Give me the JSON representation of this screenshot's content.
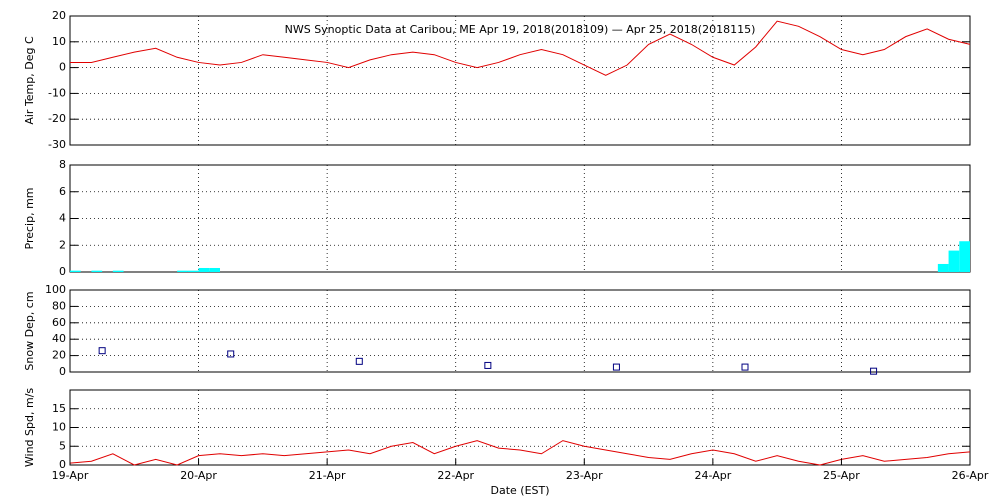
{
  "chart_data": [
    {
      "type": "line",
      "title": "NWS Synoptic Data at Caribou, ME   Apr 19, 2018(2018109) — Apr 25, 2018(2018115)",
      "ylabel": "Air Temp, Deg C",
      "ylim": [
        -30,
        20
      ],
      "yticks": [
        -30,
        -20,
        -10,
        0,
        10,
        20
      ],
      "grid": true,
      "series": [
        {
          "color": "#e00000",
          "values": [
            2,
            2,
            4,
            6,
            7.5,
            4,
            2,
            1,
            2,
            5,
            4,
            3,
            2,
            0,
            3,
            5,
            6,
            5,
            2,
            0,
            2,
            5,
            7,
            5,
            1,
            -3,
            1,
            9,
            13,
            9,
            4,
            1,
            8,
            18,
            16,
            12,
            7,
            5,
            7,
            12,
            15,
            11,
            9
          ]
        }
      ]
    },
    {
      "type": "bar",
      "ylabel": "Precip, mm",
      "ylim": [
        0,
        8
      ],
      "yticks": [
        0,
        2,
        4,
        6,
        8
      ],
      "grid": true,
      "color": "#00ffff",
      "values": [
        0.1,
        0,
        0.1,
        0,
        0.1,
        0,
        0,
        0,
        0,
        0,
        0.1,
        0.1,
        0.3,
        0.3,
        0,
        0,
        0,
        0,
        0,
        0,
        0,
        0,
        0,
        0,
        0,
        0,
        0,
        0,
        0,
        0,
        0,
        0,
        0,
        0,
        0,
        0,
        0,
        0,
        0,
        0,
        0,
        0,
        0,
        0,
        0,
        0,
        0,
        0,
        0,
        0,
        0,
        0,
        0,
        0,
        0,
        0,
        0,
        0,
        0,
        0,
        0,
        0,
        0,
        0,
        0,
        0,
        0,
        0,
        0,
        0,
        0,
        0,
        0,
        0,
        0,
        0,
        0,
        0,
        0,
        0,
        0,
        0.6,
        1.6,
        2.3
      ]
    },
    {
      "type": "scatter",
      "ylabel": "Snow Dep, cm",
      "ylim": [
        0,
        100
      ],
      "yticks": [
        0,
        20,
        40,
        60,
        80,
        100
      ],
      "grid": true,
      "color": "#000080",
      "values": [
        26,
        22,
        13,
        8,
        6,
        6,
        1
      ]
    },
    {
      "type": "line",
      "ylabel": "Wind Spd, m/s",
      "xlabel": "Date (EST)",
      "ylim": [
        0,
        20
      ],
      "yticks": [
        0,
        5,
        10,
        15
      ],
      "grid": true,
      "xticks": [
        "19-Apr",
        "20-Apr",
        "21-Apr",
        "22-Apr",
        "23-Apr",
        "24-Apr",
        "25-Apr",
        "26-Apr"
      ],
      "series": [
        {
          "color": "#e00000",
          "values": [
            0.5,
            1,
            3,
            0,
            1.5,
            0,
            2.5,
            3,
            2.5,
            3,
            2.5,
            3,
            3.5,
            4,
            3,
            5,
            6,
            3,
            5,
            6.5,
            4.5,
            4,
            3,
            6.5,
            5,
            4,
            3,
            2,
            1.5,
            3,
            4,
            3,
            1,
            2.5,
            1,
            0,
            1.5,
            2.5,
            1,
            1.5,
            2,
            3,
            3.5
          ]
        }
      ]
    }
  ]
}
